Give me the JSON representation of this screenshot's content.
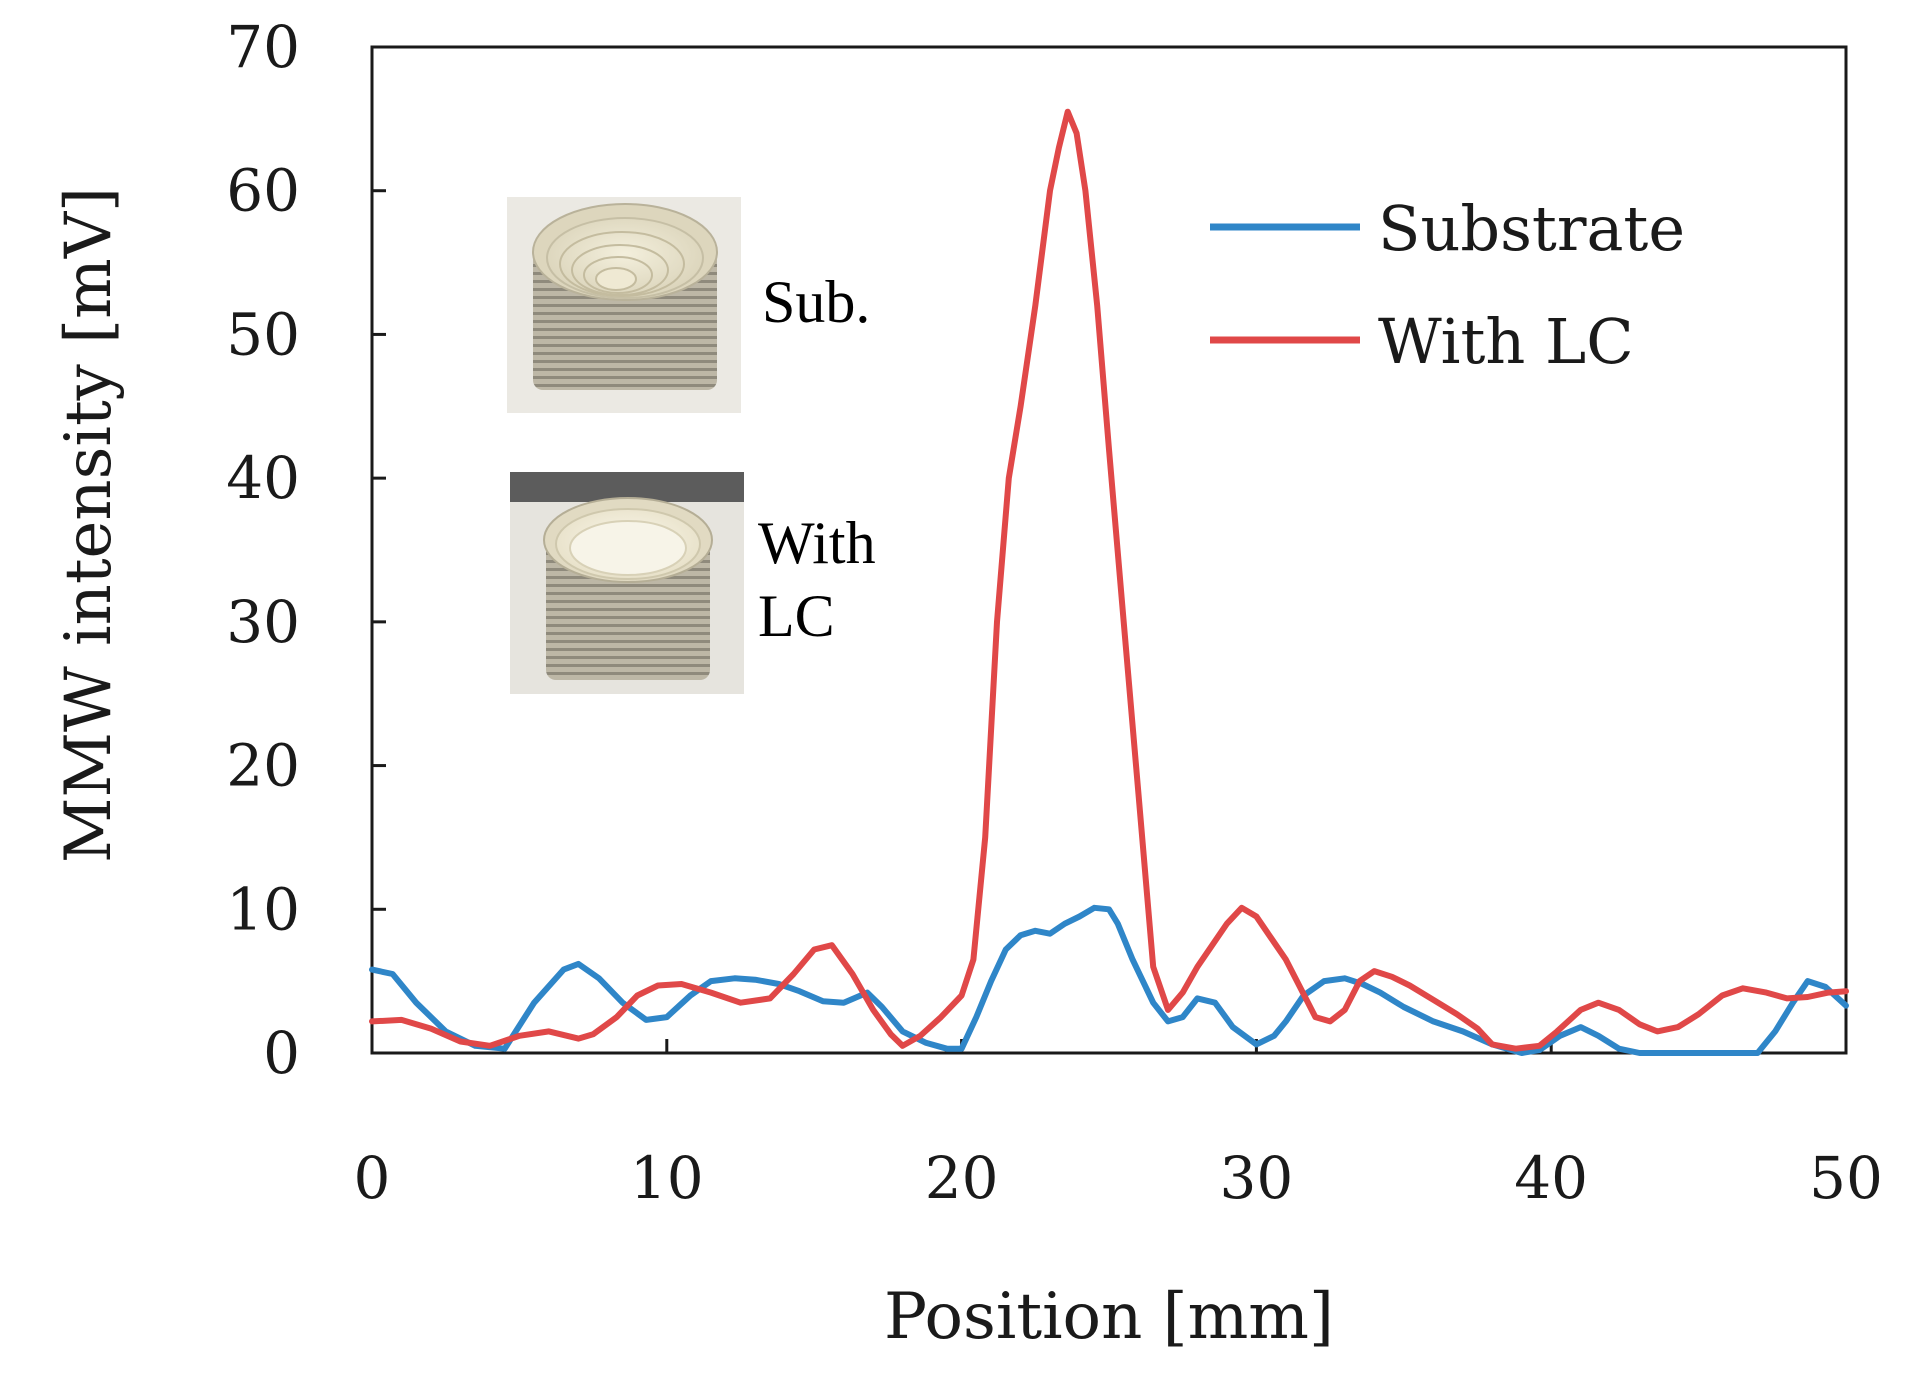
{
  "chart_data": {
    "type": "line",
    "xlabel": "Position [mm]",
    "ylabel": "MMW intensity [mV]",
    "xlim": [
      0,
      50
    ],
    "ylim": [
      0,
      70
    ],
    "xticks": [
      0,
      10,
      20,
      30,
      40,
      50
    ],
    "yticks": [
      0,
      10,
      20,
      30,
      40,
      50,
      60,
      70
    ],
    "grid": false,
    "legend_position": "top-right",
    "series": [
      {
        "name": "Substrate",
        "color": "#2f86c8",
        "x": [
          0,
          0.7,
          1.5,
          2.5,
          3.5,
          4.5,
          5.5,
          6.5,
          7,
          7.7,
          8.5,
          9.3,
          10,
          10.8,
          11.5,
          12.3,
          13,
          13.8,
          14.5,
          15.3,
          16,
          16.8,
          17.3,
          18,
          18.8,
          19.5,
          20,
          20.5,
          21,
          21.5,
          22,
          22.5,
          23,
          23.5,
          24,
          24.5,
          25,
          25.3,
          25.8,
          26.5,
          27,
          27.5,
          28,
          28.6,
          29.2,
          30,
          30.6,
          31,
          31.6,
          32.3,
          33,
          33.6,
          34.2,
          35,
          36,
          37,
          38,
          39,
          39.6,
          40.3,
          41,
          41.6,
          42.3,
          43,
          44,
          45,
          46,
          47,
          47.6,
          48.2,
          48.7,
          49.3,
          50
        ],
        "values": [
          5.8,
          5.5,
          3.5,
          1.5,
          0.5,
          0.3,
          3.5,
          5.8,
          6.2,
          5.2,
          3.5,
          2.3,
          2.5,
          4.0,
          5.0,
          5.2,
          5.1,
          4.8,
          4.3,
          3.6,
          3.5,
          4.2,
          3.2,
          1.5,
          0.7,
          0.3,
          0.3,
          2.5,
          5.0,
          7.2,
          8.2,
          8.5,
          8.3,
          9.0,
          9.5,
          10.1,
          10.0,
          9.0,
          6.5,
          3.5,
          2.2,
          2.5,
          3.8,
          3.5,
          1.8,
          0.6,
          1.2,
          2.2,
          4.0,
          5.0,
          5.2,
          4.8,
          4.2,
          3.2,
          2.2,
          1.5,
          0.6,
          0.0,
          0.2,
          1.2,
          1.8,
          1.2,
          0.3,
          0.0,
          0.0,
          0.0,
          0.0,
          0.0,
          1.5,
          3.5,
          5.0,
          4.6,
          3.3
        ]
      },
      {
        "name": "With LC",
        "color": "#e04848",
        "x": [
          0,
          1,
          2,
          3,
          4,
          5,
          6,
          7,
          7.5,
          8.3,
          9,
          9.7,
          10.5,
          11.5,
          12.5,
          13.5,
          14.3,
          15,
          15.6,
          16.3,
          17,
          17.6,
          18,
          18.6,
          19.3,
          20,
          20.4,
          20.8,
          21.2,
          21.6,
          22,
          22.5,
          23,
          23.3,
          23.6,
          23.9,
          24.2,
          24.6,
          25,
          25.5,
          26,
          26.5,
          27,
          27.5,
          28,
          28.5,
          29,
          29.5,
          30,
          30.5,
          31,
          31.5,
          32,
          32.5,
          33,
          33.5,
          34,
          34.6,
          35.2,
          36,
          36.8,
          37.5,
          38,
          38.8,
          39.6,
          40.2,
          41,
          41.6,
          42.3,
          43,
          43.6,
          44.3,
          45,
          45.8,
          46.5,
          47.3,
          48,
          48.7,
          49.4,
          50
        ],
        "values": [
          2.2,
          2.3,
          1.7,
          0.8,
          0.5,
          1.2,
          1.5,
          1.0,
          1.3,
          2.5,
          4.0,
          4.7,
          4.8,
          4.2,
          3.5,
          3.8,
          5.5,
          7.2,
          7.5,
          5.5,
          3.0,
          1.3,
          0.5,
          1.2,
          2.5,
          4.0,
          6.5,
          15.0,
          30.0,
          40.0,
          45.0,
          52.0,
          60.0,
          63.0,
          65.5,
          64.0,
          60.0,
          52.0,
          42.0,
          30.0,
          18.0,
          6.0,
          3.0,
          4.2,
          6.0,
          7.5,
          9.0,
          10.1,
          9.5,
          8.0,
          6.5,
          4.5,
          2.5,
          2.2,
          3.0,
          5.0,
          5.7,
          5.3,
          4.7,
          3.7,
          2.7,
          1.7,
          0.6,
          0.3,
          0.5,
          1.5,
          3.0,
          3.5,
          3.0,
          2.0,
          1.5,
          1.8,
          2.7,
          4.0,
          4.5,
          4.2,
          3.8,
          3.9,
          4.2,
          4.3
        ]
      }
    ],
    "annotations": {
      "inset_sub_label": "Sub.",
      "inset_lc_label_line1": "With",
      "inset_lc_label_line2": "LC"
    }
  }
}
